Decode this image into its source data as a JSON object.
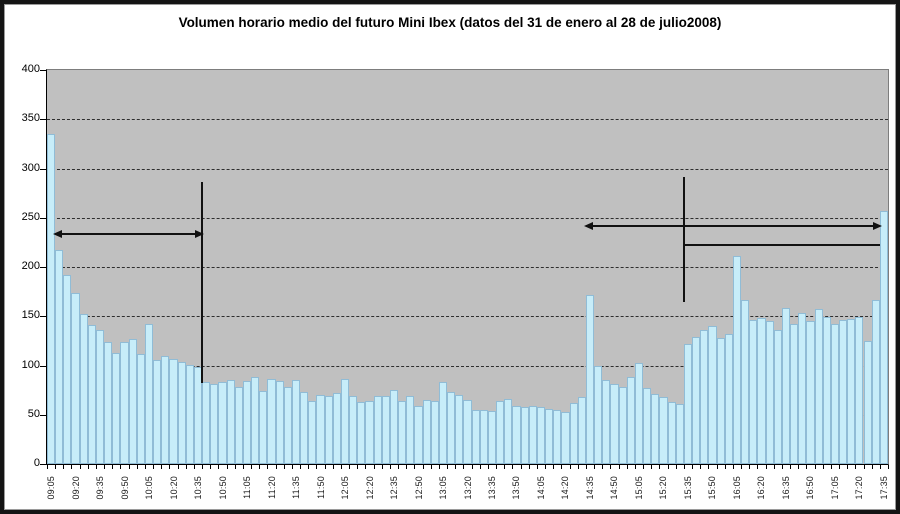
{
  "title": "Volumen horario medio del futuro Mini Ibex (datos del 31 de enero al 28 de julio2008)",
  "chart_data": {
    "type": "bar",
    "title": "Volumen horario medio del futuro Mini Ibex (datos del 31 de enero al 28 de julio2008)",
    "xlabel": "",
    "ylabel": "",
    "ylim": [
      0,
      400
    ],
    "ytick_interval": 50,
    "y_ticks": [
      400,
      350,
      300,
      250,
      200,
      150,
      100,
      50,
      0
    ],
    "grid": "horizontal dashed",
    "legend": "none",
    "categories": [
      "09:05",
      "09:10",
      "09:15",
      "09:20",
      "09:25",
      "09:30",
      "09:35",
      "09:40",
      "09:45",
      "09:50",
      "09:55",
      "10:00",
      "10:05",
      "10:10",
      "10:15",
      "10:20",
      "10:25",
      "10:30",
      "10:35",
      "10:40",
      "10:45",
      "10:50",
      "10:55",
      "11:00",
      "11:05",
      "11:10",
      "11:15",
      "11:20",
      "11:25",
      "11:30",
      "11:35",
      "11:40",
      "11:45",
      "11:50",
      "11:55",
      "12:00",
      "12:05",
      "12:10",
      "12:15",
      "12:20",
      "12:25",
      "12:30",
      "12:35",
      "12:40",
      "12:45",
      "12:50",
      "12:55",
      "13:00",
      "13:05",
      "13:10",
      "13:15",
      "13:20",
      "13:25",
      "13:30",
      "13:35",
      "13:40",
      "13:45",
      "13:50",
      "13:55",
      "14:00",
      "14:05",
      "14:10",
      "14:15",
      "14:20",
      "14:25",
      "14:30",
      "14:35",
      "14:40",
      "14:45",
      "14:50",
      "14:55",
      "15:00",
      "15:05",
      "15:10",
      "15:15",
      "15:20",
      "15:25",
      "15:30",
      "15:35",
      "15:40",
      "15:45",
      "15:50",
      "15:55",
      "16:00",
      "16:05",
      "16:10",
      "16:15",
      "16:20",
      "16:25",
      "16:30",
      "16:35",
      "16:40",
      "16:45",
      "16:50",
      "16:55",
      "17:00",
      "17:05",
      "17:10",
      "17:15",
      "17:20",
      "17:25",
      "17:30",
      "17:35"
    ],
    "values": [
      335,
      217,
      192,
      174,
      152,
      141,
      136,
      124,
      113,
      124,
      127,
      112,
      142,
      106,
      110,
      107,
      104,
      100,
      98,
      83,
      81,
      83,
      85,
      78,
      84,
      88,
      74,
      86,
      84,
      78,
      85,
      73,
      64,
      70,
      69,
      72,
      86,
      69,
      63,
      64,
      69,
      69,
      75,
      64,
      69,
      59,
      65,
      64,
      83,
      73,
      70,
      65,
      55,
      55,
      54,
      64,
      66,
      59,
      58,
      59,
      58,
      56,
      55,
      53,
      62,
      68,
      172,
      99,
      85,
      81,
      78,
      88,
      103,
      77,
      71,
      68,
      63,
      61,
      122,
      129,
      136,
      140,
      128,
      132,
      211,
      167,
      146,
      148,
      145,
      136,
      158,
      142,
      153,
      145,
      157,
      149,
      142,
      146,
      147,
      149,
      125,
      167,
      257
    ],
    "x_tick_labels": [
      "09:05",
      "09:20",
      "09:35",
      "09:50",
      "10:05",
      "10:20",
      "10:35",
      "10:50",
      "11:05",
      "11:20",
      "11:35",
      "11:50",
      "12:05",
      "12:20",
      "12:35",
      "12:50",
      "13:05",
      "13:20",
      "13:35",
      "13:50",
      "14:05",
      "14:20",
      "14:35",
      "14:50",
      "15:05",
      "15:20",
      "15:35",
      "15:50",
      "16:05",
      "16:20",
      "16:35",
      "16:50",
      "17:05",
      "17:20",
      "17:35"
    ],
    "x_label_step": 3,
    "annotations": [
      {
        "type": "double_arrow",
        "from_time": "09:10",
        "to_time": "10:40",
        "at_volume": 234
      },
      {
        "type": "vertical_line",
        "at_time": "10:40",
        "volume_from": 82,
        "volume_to": 286
      },
      {
        "type": "double_arrow",
        "from_time": "14:35",
        "to_time": "17:35",
        "at_volume": 242
      },
      {
        "type": "vertical_line",
        "at_time": "15:35",
        "volume_from": 164,
        "volume_to": 291
      },
      {
        "type": "horizontal_line",
        "from_time": "15:35",
        "to_time": "17:35",
        "at_volume": 222
      }
    ],
    "colors": {
      "plot_bg": "#c0c0c0",
      "bar_fill": "#c7edf9",
      "bar_border": "#90bcd6",
      "annotation": "#111111",
      "gridline": "#2e2e2e"
    }
  }
}
